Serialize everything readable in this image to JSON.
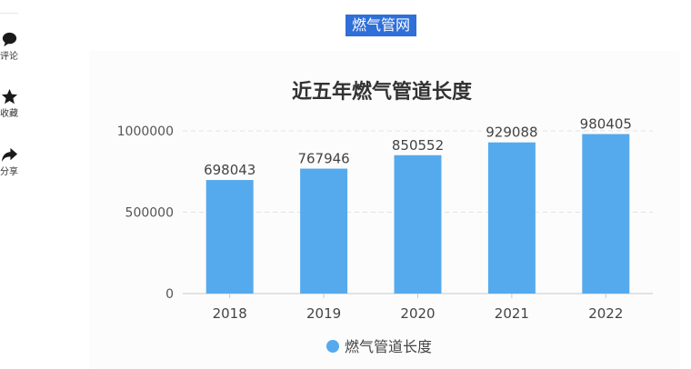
{
  "article": {
    "headline": "燃气管网"
  },
  "actions": [
    {
      "label": "评论",
      "icon": "comment-bubble-icon"
    },
    {
      "label": "收藏",
      "icon": "star-icon"
    },
    {
      "label": "分享",
      "icon": "share-arrow-icon"
    }
  ],
  "colors": {
    "bar": "#55aaee",
    "headline_bg": "#2f6fd8"
  },
  "chart_data": {
    "type": "bar",
    "title": "近五年燃气管道长度",
    "categories": [
      "2018",
      "2019",
      "2020",
      "2021",
      "2022"
    ],
    "series": [
      {
        "name": "燃气管道长度",
        "values": [
          698043,
          767946,
          850552,
          929088,
          980405
        ]
      }
    ],
    "ylim": [
      0,
      1000000
    ],
    "yticks": [
      "0",
      "500000",
      "1000000"
    ],
    "data_labels": [
      "698043",
      "767946",
      "850552",
      "929088",
      "980405"
    ],
    "grid": true,
    "legend": "bottom-center"
  }
}
